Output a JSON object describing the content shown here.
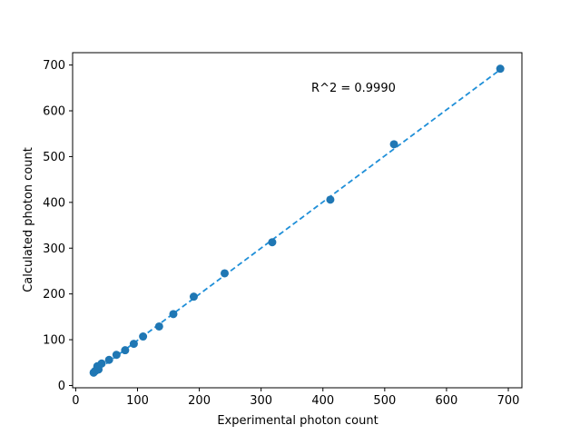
{
  "chart_data": {
    "type": "scatter",
    "title": "",
    "xlabel": "Experimental photon count",
    "ylabel": "Calculated photon count",
    "xlim": [
      -5,
      722
    ],
    "ylim": [
      -5,
      727
    ],
    "xticks": [
      0,
      100,
      200,
      300,
      400,
      500,
      600,
      700
    ],
    "yticks": [
      0,
      100,
      200,
      300,
      400,
      500,
      600,
      700
    ],
    "grid": false,
    "colors": {
      "points": "#1f77b4",
      "fit_line": "#1f8fd8"
    },
    "points": [
      {
        "x": 29,
        "y": 28
      },
      {
        "x": 31,
        "y": 31
      },
      {
        "x": 33,
        "y": 33
      },
      {
        "x": 35,
        "y": 42
      },
      {
        "x": 37,
        "y": 35
      },
      {
        "x": 42,
        "y": 48
      },
      {
        "x": 54,
        "y": 56
      },
      {
        "x": 66,
        "y": 67
      },
      {
        "x": 80,
        "y": 77
      },
      {
        "x": 94,
        "y": 91
      },
      {
        "x": 109,
        "y": 107
      },
      {
        "x": 135,
        "y": 129
      },
      {
        "x": 158,
        "y": 156
      },
      {
        "x": 191,
        "y": 194
      },
      {
        "x": 241,
        "y": 245
      },
      {
        "x": 318,
        "y": 313
      },
      {
        "x": 412,
        "y": 406
      },
      {
        "x": 515,
        "y": 527
      },
      {
        "x": 687,
        "y": 692
      }
    ],
    "fit_line": {
      "x": [
        27,
        687
      ],
      "y": [
        25,
        690
      ],
      "style": "dashed"
    },
    "annotation": {
      "text": "R^2 = 0.9990",
      "x": 490,
      "y": 650
    }
  }
}
